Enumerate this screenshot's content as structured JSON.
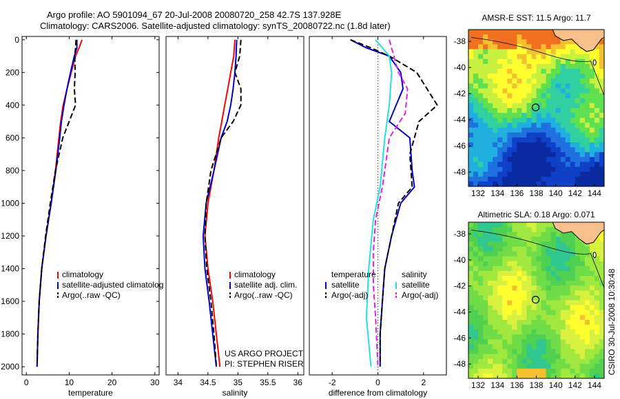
{
  "title": {
    "line1": "Argo profile: AO 5901094_67 20-Jul-2008 20080720_258 42.7S 137.928E",
    "line2": "Climatology: CARS2006. Satellite-adjusted climatology: synTS_20080722.nc (1.8d later)"
  },
  "side_label": "CSIRO 30-Jul-2008 10:30:48",
  "colors": {
    "red": "#ff0000",
    "blue": "#0000cc",
    "black": "#000000",
    "cyan": "#22e0e8",
    "magenta": "#e020e0",
    "land": "#f6bf8c"
  },
  "chart_data": [
    {
      "type": "line",
      "id": "temperature",
      "xlabel": "temperature",
      "ylabel": "",
      "xlim": [
        -1,
        31
      ],
      "ylim": [
        2050,
        -20
      ],
      "y_reversed": true,
      "xticks": [
        0,
        10,
        20,
        30
      ],
      "xtick_labels": [
        "0",
        "10",
        "20",
        "30"
      ],
      "yticks": [
        0,
        200,
        400,
        600,
        800,
        1000,
        1200,
        1400,
        1600,
        1800,
        2000
      ],
      "ytick_labels": [
        "0",
        "200",
        "400",
        "600",
        "800",
        "1000",
        "1200",
        "1400",
        "1600",
        "1800",
        "2000"
      ],
      "legend": [
        "climatology",
        "satellite-adjusted climatolog",
        "Argo(..raw -QC)"
      ],
      "legend_placement": "lower-right",
      "series": [
        {
          "name": "climatology",
          "color": "red",
          "dash": false,
          "points": [
            [
              13,
              0
            ],
            [
              12.3,
              50
            ],
            [
              11.5,
              100
            ],
            [
              10.5,
              200
            ],
            [
              9.5,
              300
            ],
            [
              8.6,
              400
            ],
            [
              8,
              500
            ],
            [
              7.6,
              600
            ],
            [
              6.8,
              800
            ],
            [
              5.8,
              1000
            ],
            [
              4.6,
              1200
            ],
            [
              3.6,
              1400
            ],
            [
              3.0,
              1600
            ],
            [
              2.7,
              1800
            ],
            [
              2.5,
              2000
            ]
          ]
        },
        {
          "name": "satellite-adjusted climatolog",
          "color": "blue",
          "dash": false,
          "points": [
            [
              11.8,
              0
            ],
            [
              11.8,
              50
            ],
            [
              11.2,
              100
            ],
            [
              10.3,
              200
            ],
            [
              9.5,
              300
            ],
            [
              8.8,
              400
            ],
            [
              8.2,
              500
            ],
            [
              7.8,
              600
            ],
            [
              6.9,
              800
            ],
            [
              5.8,
              1000
            ],
            [
              4.6,
              1200
            ],
            [
              3.6,
              1400
            ],
            [
              3.0,
              1600
            ],
            [
              2.7,
              1800
            ],
            [
              2.5,
              2000
            ]
          ]
        },
        {
          "name": "Argo(..raw -QC)",
          "color": "black",
          "dash": true,
          "points": [
            [
              11.6,
              0
            ],
            [
              11.5,
              50
            ],
            [
              11.3,
              100
            ],
            [
              11.4,
              200
            ],
            [
              11.2,
              300
            ],
            [
              11.5,
              400
            ],
            [
              10,
              500
            ],
            [
              8.5,
              600
            ],
            [
              6.8,
              800
            ],
            [
              5.6,
              1000
            ],
            [
              4.5,
              1200
            ],
            [
              3.6,
              1400
            ],
            [
              3.0,
              1600
            ],
            [
              2.7,
              1800
            ],
            [
              2.5,
              1990
            ]
          ]
        }
      ],
      "annotations": []
    },
    {
      "type": "line",
      "id": "salinity",
      "xlabel": "salinity",
      "ylabel": "",
      "xlim": [
        33.8,
        36.1
      ],
      "ylim": [
        2050,
        -20
      ],
      "y_reversed": true,
      "xticks": [
        34,
        34.5,
        35,
        35.5,
        36
      ],
      "xtick_labels": [
        "34",
        "34.5",
        "35",
        "35.5",
        "36"
      ],
      "yticks": [],
      "ytick_labels": [],
      "legend": [
        "climatology",
        "satellite adj. clim.",
        "Argo(..raw -QC)"
      ],
      "legend_placement": "lower-right",
      "series": [
        {
          "name": "climatology",
          "color": "red",
          "dash": false,
          "points": [
            [
              34.95,
              0
            ],
            [
              34.93,
              100
            ],
            [
              34.88,
              200
            ],
            [
              34.83,
              300
            ],
            [
              34.78,
              400
            ],
            [
              34.73,
              500
            ],
            [
              34.68,
              600
            ],
            [
              34.6,
              800
            ],
            [
              34.5,
              1000
            ],
            [
              34.45,
              1200
            ],
            [
              34.5,
              1400
            ],
            [
              34.58,
              1600
            ],
            [
              34.64,
              1800
            ],
            [
              34.7,
              2000
            ]
          ]
        },
        {
          "name": "satellite adj. clim.",
          "color": "blue",
          "dash": false,
          "points": [
            [
              34.98,
              0
            ],
            [
              34.97,
              100
            ],
            [
              34.95,
              200
            ],
            [
              34.92,
              300
            ],
            [
              34.88,
              400
            ],
            [
              34.82,
              500
            ],
            [
              34.72,
              600
            ],
            [
              34.6,
              800
            ],
            [
              34.47,
              1000
            ],
            [
              34.42,
              1200
            ],
            [
              34.45,
              1400
            ],
            [
              34.52,
              1600
            ],
            [
              34.58,
              1800
            ],
            [
              34.64,
              2000
            ]
          ]
        },
        {
          "name": "Argo(..raw -QC)",
          "color": "black",
          "dash": true,
          "points": [
            [
              35.05,
              0
            ],
            [
              35.03,
              100
            ],
            [
              34.95,
              200
            ],
            [
              35.05,
              300
            ],
            [
              35.05,
              400
            ],
            [
              34.92,
              500
            ],
            [
              34.72,
              600
            ],
            [
              34.55,
              800
            ],
            [
              34.47,
              1000
            ],
            [
              34.45,
              1200
            ],
            [
              34.48,
              1400
            ],
            [
              34.55,
              1600
            ],
            [
              34.6,
              1800
            ],
            [
              34.64,
              1990
            ]
          ]
        }
      ],
      "annotations": [
        "US ARGO PROJECT",
        "PI: STEPHEN RISER"
      ]
    },
    {
      "type": "line",
      "id": "difference",
      "xlabel": "difference from climatology",
      "ylabel": "",
      "xlim": [
        -3,
        3
      ],
      "ylim": [
        2050,
        -20
      ],
      "y_reversed": true,
      "xticks": [
        -2,
        0,
        2
      ],
      "xtick_labels": [
        "-2",
        "0",
        "2"
      ],
      "yticks": [],
      "ytick_labels": [],
      "legend_groups": [
        {
          "header": "temperature",
          "items": [
            "satellite",
            "Argo(-adj)"
          ]
        },
        {
          "header": "salinity",
          "items": [
            "satellite",
            "Argo(-adj)"
          ]
        }
      ],
      "legend_placement": "lower-center",
      "series": [
        {
          "name": "satellite",
          "group": "temperature",
          "color": "blue",
          "dash": false,
          "points": [
            [
              -1.2,
              0
            ],
            [
              -0.5,
              50
            ],
            [
              0.5,
              100
            ],
            [
              1.0,
              200
            ],
            [
              1.1,
              300
            ],
            [
              0.8,
              400
            ],
            [
              0.5,
              500
            ],
            [
              1.4,
              600
            ],
            [
              1.5,
              800
            ],
            [
              1.6,
              900
            ],
            [
              1.0,
              1000
            ],
            [
              0.6,
              1200
            ],
            [
              0.3,
              1400
            ],
            [
              0.2,
              1600
            ],
            [
              0.1,
              1800
            ],
            [
              0.1,
              2000
            ]
          ]
        },
        {
          "name": "Argo(-adj)",
          "group": "temperature",
          "color": "black",
          "dash": true,
          "points": [
            [
              -1.2,
              0
            ],
            [
              -0.3,
              50
            ],
            [
              0.5,
              100
            ],
            [
              1.7,
              200
            ],
            [
              2.6,
              400
            ],
            [
              1.8,
              500
            ],
            [
              1.4,
              700
            ],
            [
              1.5,
              900
            ],
            [
              0.9,
              1000
            ],
            [
              0.6,
              1200
            ],
            [
              0.3,
              1400
            ],
            [
              0.2,
              1600
            ],
            [
              0.1,
              1800
            ],
            [
              0.1,
              1990
            ]
          ]
        },
        {
          "name": "satellite",
          "group": "salinity",
          "color": "cyan",
          "dash": false,
          "points": [
            [
              -0.1,
              0
            ],
            [
              0.5,
              100
            ],
            [
              0.6,
              200
            ],
            [
              0.5,
              400
            ],
            [
              0.3,
              600
            ],
            [
              0.1,
              900
            ],
            [
              -0.2,
              1100
            ],
            [
              -0.4,
              1400
            ],
            [
              -0.5,
              1700
            ],
            [
              -0.3,
              2000
            ]
          ]
        },
        {
          "name": "Argo(-adj)",
          "group": "salinity",
          "color": "magenta",
          "dash": true,
          "points": [
            [
              0.5,
              0
            ],
            [
              0.7,
              100
            ],
            [
              0.9,
              200
            ],
            [
              1.3,
              300
            ],
            [
              1.2,
              450
            ],
            [
              0.5,
              600
            ],
            [
              0.3,
              800
            ],
            [
              0.2,
              900
            ],
            [
              -0.1,
              1100
            ],
            [
              -0.2,
              1300
            ],
            [
              -0.2,
              1500
            ],
            [
              -0.1,
              1700
            ],
            [
              0.0,
              1990
            ]
          ]
        }
      ],
      "annotations": []
    }
  ],
  "maps": [
    {
      "id": "sst",
      "title": "AMSR-E SST: 11.5 Argo: 11.7",
      "xticks": [
        "132",
        "134",
        "136",
        "138",
        "140",
        "142",
        "144"
      ],
      "yticks": [
        "-38",
        "-40",
        "-42",
        "-44",
        "-46",
        "-48"
      ],
      "xlim": [
        130.5,
        145.5
      ],
      "ylim": [
        -49,
        -36.5
      ],
      "float_position": [
        137.928,
        -42.7
      ]
    },
    {
      "id": "sla",
      "title": "Altimetric SLA: 0.18 Argo: 0.071",
      "xticks": [
        "132",
        "134",
        "136",
        "138",
        "140",
        "142",
        "144"
      ],
      "yticks": [
        "-38",
        "-40",
        "-42",
        "-44",
        "-46",
        "-48"
      ],
      "xlim": [
        130.5,
        145.5
      ],
      "ylim": [
        -49,
        -36.5
      ],
      "float_position": [
        137.928,
        -42.7
      ]
    }
  ]
}
